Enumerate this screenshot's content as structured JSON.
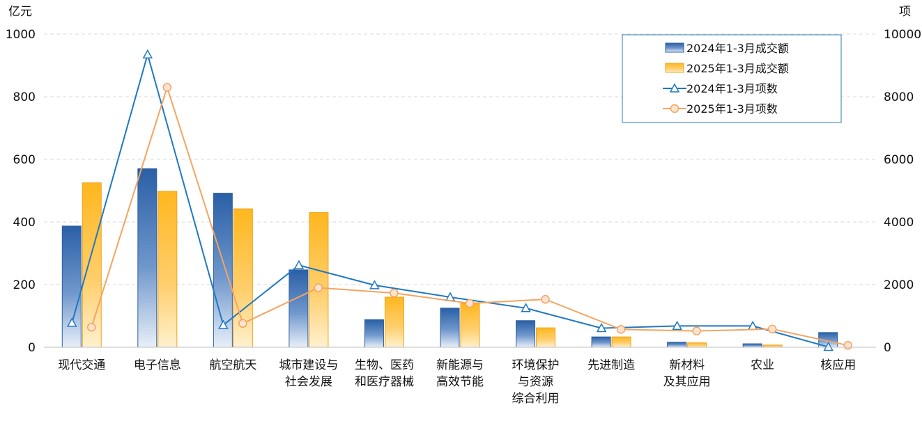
{
  "chart_data": {
    "type": "bar",
    "title": "",
    "left_axis_unit": "亿元",
    "right_axis_unit": "项",
    "left_ylim": [
      0,
      1000
    ],
    "left_ticks": [
      "0",
      "200",
      "400",
      "600",
      "800",
      "1000"
    ],
    "right_ylim": [
      0,
      10000
    ],
    "right_ticks": [
      "0",
      "2000",
      "4000",
      "6000",
      "8000",
      "10000"
    ],
    "grid": true,
    "legend_position": "top-right",
    "categories": [
      [
        "现代交通"
      ],
      [
        "电子信息"
      ],
      [
        "航空航天"
      ],
      [
        "城市建设与",
        "社会发展"
      ],
      [
        "生物、医药",
        "和医疗器械"
      ],
      [
        "新能源与",
        "高效节能"
      ],
      [
        "环境保护",
        "与资源",
        "综合利用"
      ],
      [
        "先进制造"
      ],
      [
        "新材料",
        "及其应用"
      ],
      [
        "农业"
      ],
      [
        "核应用"
      ]
    ],
    "series": [
      {
        "name": "2024年1-3月成交额",
        "kind": "bar",
        "axis": "left",
        "color": "#2e64a8",
        "values": [
          387,
          570,
          492,
          247,
          88,
          125,
          85,
          33,
          16,
          11,
          47
        ]
      },
      {
        "name": "2025年1-3月成交额",
        "kind": "bar",
        "axis": "left",
        "color": "#ffb726",
        "values": [
          525,
          498,
          442,
          430,
          160,
          140,
          62,
          33,
          14,
          7,
          0
        ]
      },
      {
        "name": "2024年1-3月项数",
        "kind": "line",
        "marker": "triangle",
        "axis": "right",
        "color": "#1f78c1",
        "values": [
          780,
          9350,
          710,
          2620,
          1980,
          1600,
          1250,
          610,
          680,
          680,
          10
        ]
      },
      {
        "name": "2025年1-3月项数",
        "kind": "line",
        "marker": "circle",
        "axis": "right",
        "color": "#f4a460",
        "values": [
          640,
          8300,
          760,
          1900,
          1730,
          1400,
          1530,
          570,
          520,
          580,
          60
        ]
      }
    ]
  }
}
